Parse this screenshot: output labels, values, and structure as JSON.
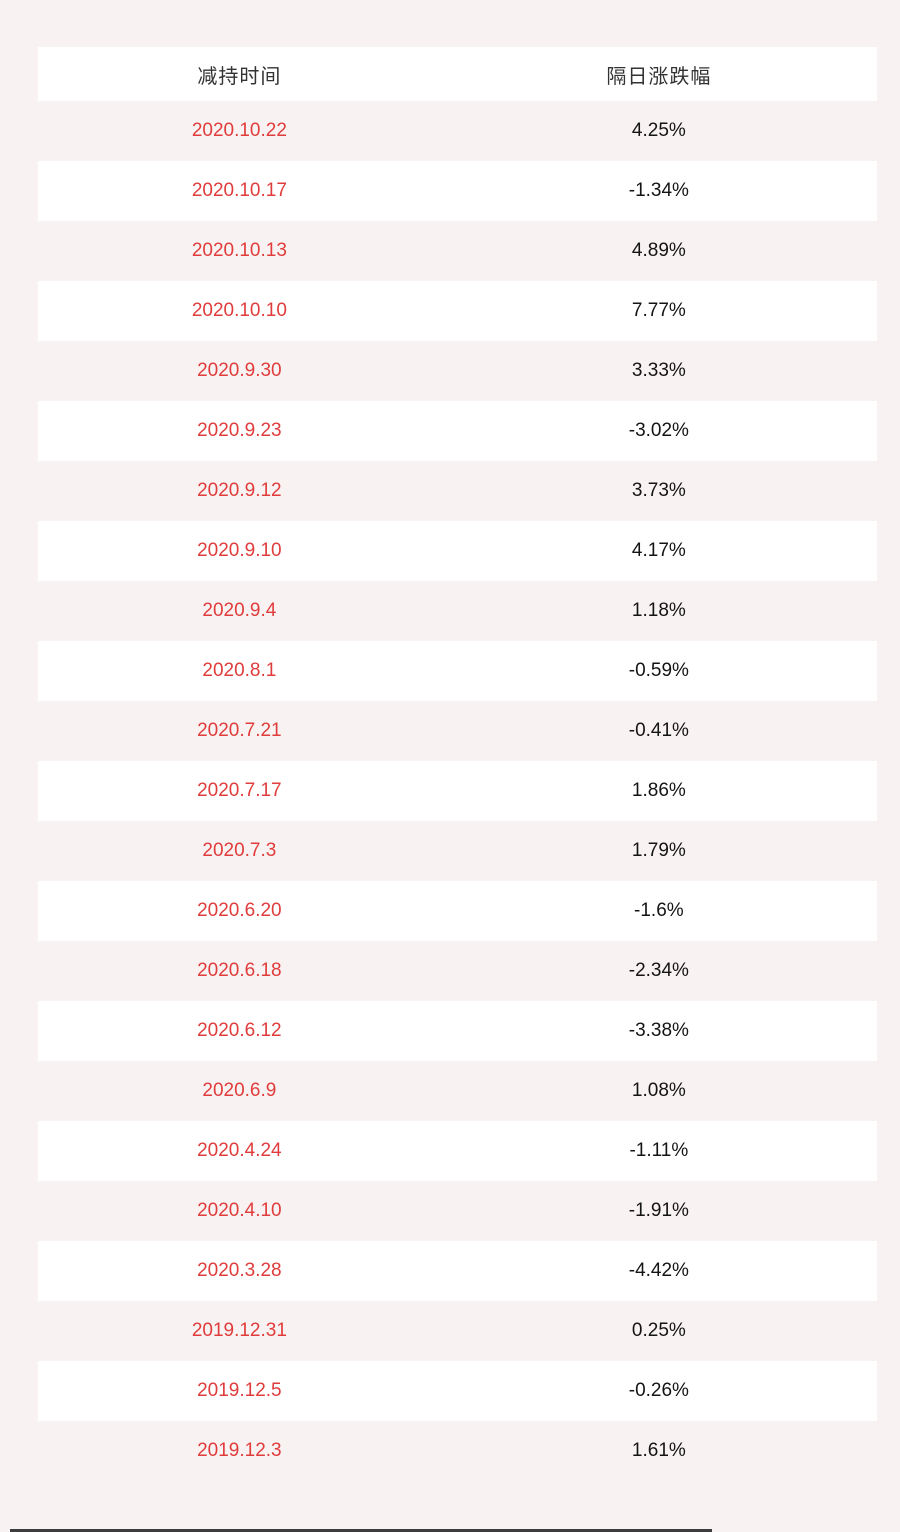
{
  "page": {
    "background_color": "#f9f2f2"
  },
  "chart_data": {
    "type": "table",
    "columns": [
      "减持时间",
      "隔日涨跌幅"
    ],
    "rows": [
      [
        "2020.10.22",
        "4.25%"
      ],
      [
        "2020.10.17",
        "-1.34%"
      ],
      [
        "2020.10.13",
        "4.89%"
      ],
      [
        "2020.10.10",
        "7.77%"
      ],
      [
        "2020.9.30",
        "3.33%"
      ],
      [
        "2020.9.23",
        "-3.02%"
      ],
      [
        "2020.9.12",
        "3.73%"
      ],
      [
        "2020.9.10",
        "4.17%"
      ],
      [
        "2020.9.4",
        "1.18%"
      ],
      [
        "2020.8.1",
        "-0.59%"
      ],
      [
        "2020.7.21",
        "-0.41%"
      ],
      [
        "2020.7.17",
        "1.86%"
      ],
      [
        "2020.7.3",
        "1.79%"
      ],
      [
        "2020.6.20",
        "-1.6%"
      ],
      [
        "2020.6.18",
        "-2.34%"
      ],
      [
        "2020.6.12",
        "-3.38%"
      ],
      [
        "2020.6.9",
        "1.08%"
      ],
      [
        "2020.4.24",
        "-1.11%"
      ],
      [
        "2020.4.10",
        "-1.91%"
      ],
      [
        "2020.3.28",
        "-4.42%"
      ],
      [
        "2019.12.31",
        "0.25%"
      ],
      [
        "2019.12.5",
        "-0.26%"
      ],
      [
        "2019.12.3",
        "1.61%"
      ]
    ],
    "layout": {
      "header_background": "#ffffff",
      "row_alt_background": "#ffffff",
      "row_base_background": "#f9f2f2"
    },
    "colors": {
      "date_text": "#e03c3c",
      "change_text": "#141414",
      "header_text": "#333333",
      "bottom_bar": "#3d3d3d"
    }
  },
  "table": {
    "header": {
      "col1": "减持时间",
      "col2": "隔日涨跌幅"
    },
    "rows": [
      {
        "date": "2020.10.22",
        "change": "4.25%"
      },
      {
        "date": "2020.10.17",
        "change": "-1.34%"
      },
      {
        "date": "2020.10.13",
        "change": "4.89%"
      },
      {
        "date": "2020.10.10",
        "change": "7.77%"
      },
      {
        "date": "2020.9.30",
        "change": "3.33%"
      },
      {
        "date": "2020.9.23",
        "change": "-3.02%"
      },
      {
        "date": "2020.9.12",
        "change": "3.73%"
      },
      {
        "date": "2020.9.10",
        "change": "4.17%"
      },
      {
        "date": "2020.9.4",
        "change": "1.18%"
      },
      {
        "date": "2020.8.1",
        "change": "-0.59%"
      },
      {
        "date": "2020.7.21",
        "change": "-0.41%"
      },
      {
        "date": "2020.7.17",
        "change": "1.86%"
      },
      {
        "date": "2020.7.3",
        "change": "1.79%"
      },
      {
        "date": "2020.6.20",
        "change": "-1.6%"
      },
      {
        "date": "2020.6.18",
        "change": "-2.34%"
      },
      {
        "date": "2020.6.12",
        "change": "-3.38%"
      },
      {
        "date": "2020.6.9",
        "change": "1.08%"
      },
      {
        "date": "2020.4.24",
        "change": "-1.11%"
      },
      {
        "date": "2020.4.10",
        "change": "-1.91%"
      },
      {
        "date": "2020.3.28",
        "change": "-4.42%"
      },
      {
        "date": "2019.12.31",
        "change": "0.25%"
      },
      {
        "date": "2019.12.5",
        "change": "-0.26%"
      },
      {
        "date": "2019.12.3",
        "change": "1.61%"
      }
    ]
  }
}
